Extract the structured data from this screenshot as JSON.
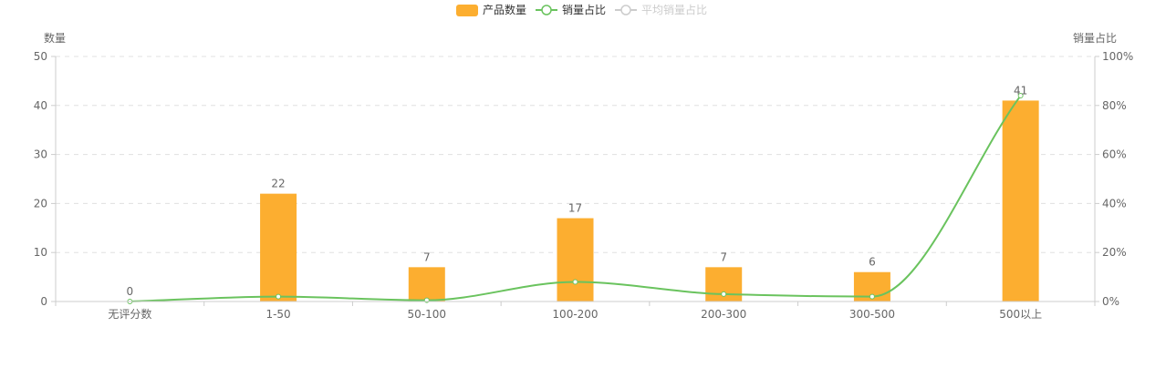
{
  "legend": {
    "items": [
      {
        "label": "产品数量",
        "symbol": "bar",
        "color": "#fcae30",
        "active": true
      },
      {
        "label": "销量占比",
        "symbol": "line",
        "color": "#6ac35e",
        "active": true
      },
      {
        "label": "平均销量占比",
        "symbol": "line",
        "color": "#cccccc",
        "active": false
      }
    ]
  },
  "chart_data": {
    "type": "bar",
    "categories": [
      "无评分数",
      "1-50",
      "50-100",
      "100-200",
      "200-300",
      "300-500",
      "500以上"
    ],
    "series": [
      {
        "name": "产品数量",
        "type": "bar",
        "axis": "left",
        "color": "#fcae30",
        "values": [
          0,
          22,
          7,
          17,
          7,
          6,
          41
        ],
        "data_labels": [
          "0",
          "22",
          "7",
          "17",
          "7",
          "6",
          "41"
        ]
      },
      {
        "name": "销量占比",
        "type": "line",
        "axis": "right",
        "smooth": true,
        "color": "#6ac35e",
        "values": [
          0,
          2,
          0.5,
          8,
          3,
          2,
          84
        ]
      }
    ],
    "y_left": {
      "label": "数量",
      "ylim": [
        0,
        50
      ],
      "ticks": [
        "0",
        "10",
        "20",
        "30",
        "40",
        "50"
      ],
      "tick_values": [
        0,
        10,
        20,
        30,
        40,
        50
      ]
    },
    "y_right": {
      "label": "销量占比",
      "ylim": [
        0,
        100
      ],
      "ticks": [
        "0%",
        "20%",
        "40%",
        "60%",
        "80%",
        "100%"
      ],
      "tick_values": [
        0,
        20,
        40,
        60,
        80,
        100
      ]
    },
    "grid": "horizontal-dashed",
    "legend_position": "top-center"
  }
}
